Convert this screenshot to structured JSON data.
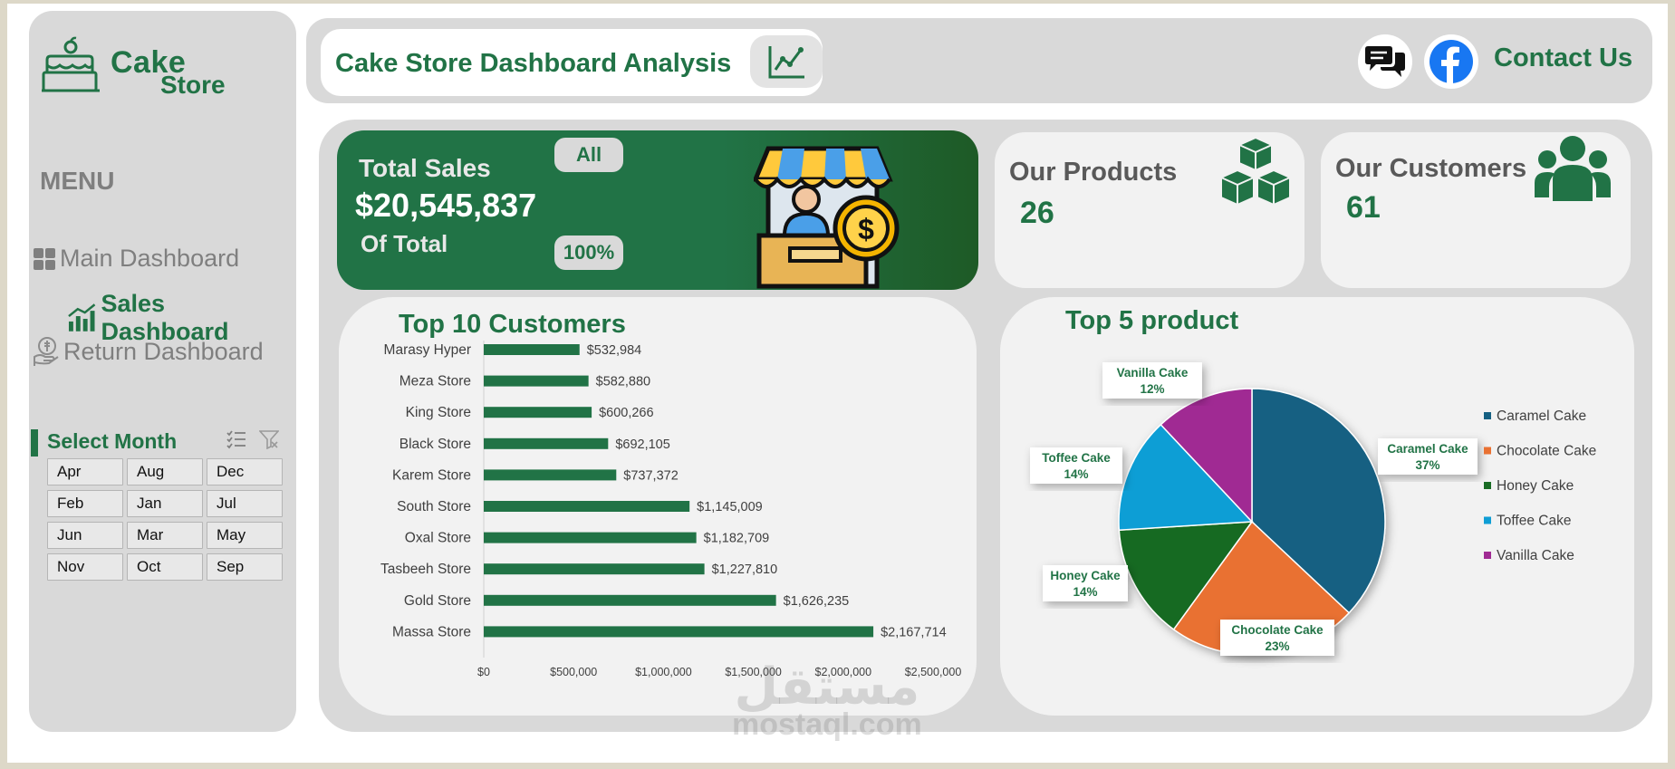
{
  "brand": {
    "line1": "Cake",
    "line2": "Store"
  },
  "sidebar": {
    "menu_title": "MENU",
    "items": [
      {
        "label": "Main Dashboard"
      },
      {
        "label": "Sales Dashboard"
      },
      {
        "label": "Return Dashboard"
      }
    ],
    "select_month": {
      "label": "Select Month",
      "months": [
        "Apr",
        "Aug",
        "Dec",
        "Feb",
        "Jan",
        "Jul",
        "Jun",
        "Mar",
        "May",
        "Nov",
        "Oct",
        "Sep"
      ]
    }
  },
  "header": {
    "title": "Cake Store Dashboard Analysis",
    "contact": "Contact Us"
  },
  "total_sales": {
    "label": "Total Sales",
    "value": "$20,545,837",
    "of_total": "Of Total",
    "filter": "All",
    "percent": "100%"
  },
  "products": {
    "label": "Our Products",
    "value": "26"
  },
  "customers": {
    "label": "Our Customers",
    "value": "61"
  },
  "watermark": {
    "ar": "مستقل",
    "en": "mostaql.com"
  },
  "colors": {
    "accent": "#217346",
    "panel": "#f2f2f2",
    "sidebar": "#d9d9d9"
  },
  "chart_data": [
    {
      "type": "bar",
      "orientation": "horizontal",
      "title": "Top 10 Customers",
      "categories": [
        "Marasy Hyper",
        "Meza Store",
        "King Store",
        "Black Store",
        "Karem Store",
        "South Store",
        "Oxal Store",
        "Tasbeeh Store",
        "Gold Store",
        "Massa Store"
      ],
      "values": [
        532984,
        582880,
        600266,
        692105,
        737372,
        1145009,
        1182709,
        1227810,
        1626235,
        2167714
      ],
      "value_labels": [
        "$532,984",
        "$582,880",
        "$600,266",
        "$692,105",
        "$737,372",
        "$1,145,009",
        "$1,182,709",
        "$1,227,810",
        "$1,626,235",
        "$2,167,714"
      ],
      "xlim": [
        0,
        2500000
      ],
      "xticks": [
        "$0",
        "$500,000",
        "$1,000,000",
        "$1,500,000",
        "$2,000,000",
        "$2,500,000"
      ],
      "color": "#217346"
    },
    {
      "type": "pie",
      "title": "Top 5 product",
      "slices": [
        {
          "name": "Caramel Cake",
          "percent": 37,
          "label": "37%",
          "color": "#156082"
        },
        {
          "name": "Chocolate Cake",
          "percent": 23,
          "label": "23%",
          "color": "#e97132"
        },
        {
          "name": "Honey Cake",
          "percent": 14,
          "label": "14%",
          "color": "#196b24"
        },
        {
          "name": "Toffee Cake",
          "percent": 14,
          "label": "14%",
          "color": "#0f9ed5"
        },
        {
          "name": "Vanilla Cake",
          "percent": 12,
          "label": "12%",
          "color": "#a02b93"
        }
      ],
      "legend": "right"
    }
  ]
}
